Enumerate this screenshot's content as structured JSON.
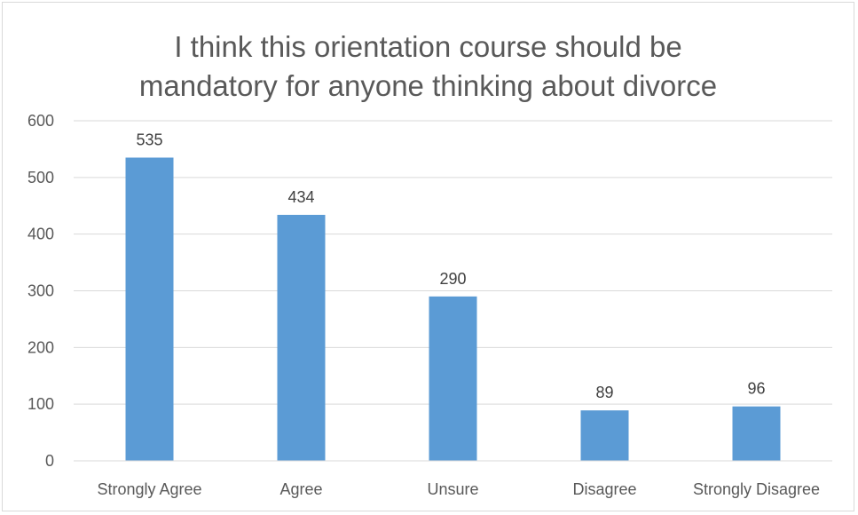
{
  "chart_data": {
    "type": "bar",
    "title": "I think this orientation course should be\nmandatory for anyone thinking about divorce",
    "categories": [
      "Strongly Agree",
      "Agree",
      "Unsure",
      "Disagree",
      "Strongly Disagree"
    ],
    "values": [
      535,
      434,
      290,
      89,
      96
    ],
    "data_labels": [
      "535",
      "434",
      "290",
      "89",
      "96"
    ],
    "y_ticks": [
      "0",
      "100",
      "200",
      "300",
      "400",
      "500",
      "600"
    ],
    "ylim": [
      0,
      600
    ],
    "xlabel": "",
    "ylabel": "",
    "grid": true,
    "legend": "none",
    "bar_color": "#5b9bd5",
    "grid_color": "#d9d9d9",
    "text_color": "#595959"
  }
}
